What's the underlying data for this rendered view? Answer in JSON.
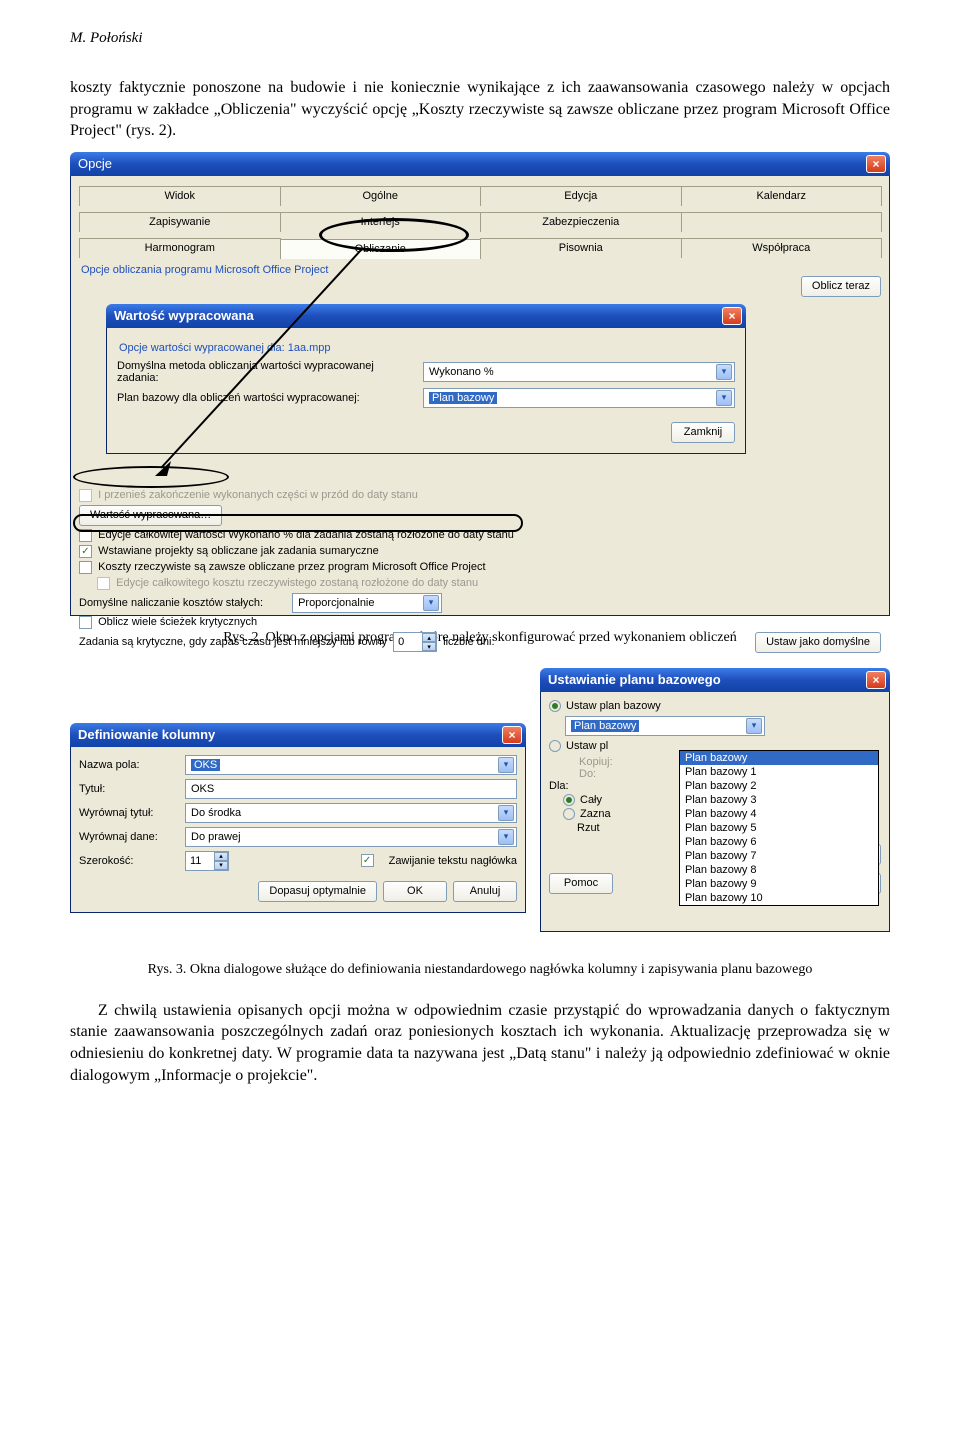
{
  "author": "M. Połoński",
  "para1": "koszty faktycznie ponoszone na budowie i nie koniecznie wynikające z ich zaawansowania czasowego należy w opcjach programu w zakładce „Obliczenia\" wyczyścić opcję „Koszty rzeczywiste są zawsze obliczane przez program Microsoft Office Project\" (rys. 2).",
  "fig2": {
    "window_title": "Opcje",
    "tabs_row1": [
      "Widok",
      "Ogólne",
      "Edycja",
      "Kalendarz"
    ],
    "tabs_row2": [
      "Zapisywanie",
      "Interfejs",
      "Zabezpieczenia",
      ""
    ],
    "tabs_row3": [
      "Harmonogram",
      "Obliczanie",
      "Pisownia",
      "Współpraca"
    ],
    "section": "Opcje obliczania programu Microsoft Office Project",
    "btn_oblicz": "Oblicz teraz",
    "inner_title": "Wartość wypracowana",
    "inner_caption": "Opcje wartości wypracowanej dla: 1aa.mpp",
    "lbl_metoda": "Domyślna metoda obliczania wartości wypracowanej zadania:",
    "val_metoda": "Wykonano %",
    "lbl_plan": "Plan bazowy dla obliczeń wartości wypracowanej:",
    "val_plan": "Plan bazowy",
    "btn_zamknij": "Zamknij",
    "chk1": "I przenieś zakończenie wykonanych części w przód do daty stanu",
    "btn_wartosc": "Wartość wypracowana…",
    "chk2": "Edycje całkowitej wartości Wykonano % dla zadania zostaną rozłożone do daty stanu",
    "chk3": "Wstawiane projekty są obliczane jak zadania sumaryczne",
    "chk4": "Koszty rzeczywiste są zawsze obliczane przez program Microsoft Office Project",
    "chk5": "Edycje całkowitego kosztu rzeczywistego zostaną rozłożone do daty stanu",
    "lbl_nali": "Domyślne naliczanie kosztów stałych:",
    "val_nali": "Proporcjonalnie",
    "chk_multi": "Oblicz wiele ścieżek krytycznych",
    "lbl_zapas_a": "Zadania są krytyczne, gdy zapas czasu jest mniejszy lub równy",
    "spin_val": "0",
    "lbl_zapas_b": "liczbie dni:",
    "btn_ustaw": "Ustaw jako domyślne"
  },
  "caption2": "Rys. 2. Okno z opcjami programu, które należy skonfigurować przed wykonaniem obliczeń",
  "fig3": {
    "defcol_title": "Definiowanie kolumny",
    "lbl_nazwa": "Nazwa pola:",
    "val_nazwa": "OKS",
    "lbl_tytul": "Tytuł:",
    "val_tytul": "OKS",
    "lbl_wt": "Wyrównaj tytuł:",
    "val_wt": "Do środka",
    "lbl_wd": "Wyrównaj dane:",
    "val_wd": "Do prawej",
    "lbl_szer": "Szerokość:",
    "val_szer": "11",
    "chk_zawij": "Zawijanie tekstu nagłówka",
    "btn_dopasuj": "Dopasuj optymalnie",
    "btn_ok": "OK",
    "btn_anuluj": "Anuluj",
    "base_title": "Ustawianie planu bazowego",
    "radio_ustaw": "Ustaw plan bazowy",
    "radio_ustawpl": "Ustaw pl",
    "sel_value": "Plan bazowy",
    "dd": [
      "Plan bazowy",
      "Plan bazowy 1",
      "Plan bazowy 2",
      "Plan bazowy 3",
      "Plan bazowy 4",
      "Plan bazowy 5",
      "Plan bazowy 6",
      "Plan bazowy 7",
      "Plan bazowy 8",
      "Plan bazowy 9",
      "Plan bazowy 10"
    ],
    "lbl_kop": "Kopiuj:",
    "lbl_do": "Do:",
    "lbl_dla": "Dla:",
    "radio_caly": "Cały",
    "radio_zazna": "Zazna",
    "lbl_rzut": "Rzut",
    "btn_ustaw_dom": "Ustaw jako domyślne",
    "btn_pomoc": "Pomoc"
  },
  "caption3": "Rys. 3. Okna dialogowe służące do definiowania niestandardowego nagłówka kolumny i zapisywania planu bazowego",
  "para2": "Z chwilą ustawienia opisanych opcji można w odpowiednim czasie przystąpić do wprowadzania danych o faktycznym stanie zaawansowania poszczególnych zadań oraz poniesionych kosztach ich wykonania. Aktualizację przeprowadza się w odniesieniu do konkretnej daty. W programie data ta nazywana jest „Datą stanu\" i należy ją odpowiednio zdefiniować w oknie dialogowym „Informacje o projekcie\"."
}
